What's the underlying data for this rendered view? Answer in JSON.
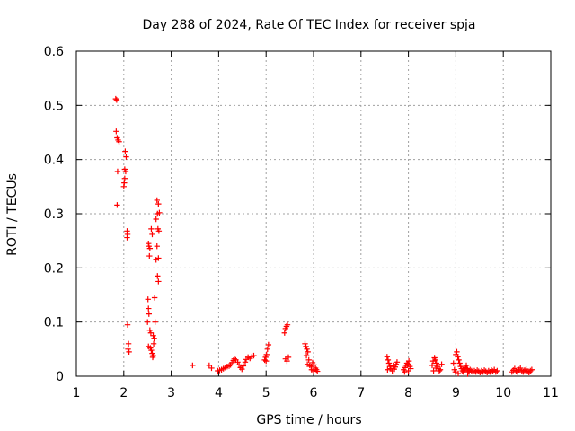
{
  "chart_data": {
    "type": "scatter",
    "title": "Day 288 of 2024, Rate Of TEC Index for receiver spja",
    "xlabel": "GPS time / hours",
    "ylabel": "ROTI / TECUs",
    "xlim": [
      1,
      11
    ],
    "ylim": [
      0,
      0.6
    ],
    "xticks": [
      1,
      2,
      3,
      4,
      5,
      6,
      7,
      8,
      9,
      10,
      11
    ],
    "xtick_labels": [
      "1",
      "2",
      "3",
      "4",
      "5",
      "6",
      "7",
      "8",
      "9",
      "10",
      "11"
    ],
    "yticks": [
      0,
      0.1,
      0.2,
      0.3,
      0.4,
      0.5,
      0.6
    ],
    "ytick_labels": [
      "0",
      "0.1",
      "0.2",
      "0.3",
      "0.4",
      "0.5",
      "0.6"
    ],
    "grid": true,
    "marker": "+",
    "color": "#ff0000",
    "series": [
      {
        "name": "spja",
        "points": [
          [
            1.83,
            0.512
          ],
          [
            1.85,
            0.51
          ],
          [
            1.84,
            0.452
          ],
          [
            1.86,
            0.44
          ],
          [
            1.88,
            0.436
          ],
          [
            1.9,
            0.433
          ],
          [
            1.87,
            0.378
          ],
          [
            1.86,
            0.316
          ],
          [
            2.03,
            0.415
          ],
          [
            2.05,
            0.405
          ],
          [
            2.02,
            0.382
          ],
          [
            2.04,
            0.378
          ],
          [
            2.02,
            0.365
          ],
          [
            2.01,
            0.357
          ],
          [
            2.0,
            0.35
          ],
          [
            2.07,
            0.268
          ],
          [
            2.08,
            0.262
          ],
          [
            2.07,
            0.256
          ],
          [
            2.08,
            0.095
          ],
          [
            2.1,
            0.06
          ],
          [
            2.09,
            0.05
          ],
          [
            2.11,
            0.045
          ],
          [
            2.52,
            0.245
          ],
          [
            2.53,
            0.24
          ],
          [
            2.55,
            0.236
          ],
          [
            2.54,
            0.222
          ],
          [
            2.58,
            0.272
          ],
          [
            2.6,
            0.262
          ],
          [
            2.51,
            0.142
          ],
          [
            2.52,
            0.125
          ],
          [
            2.53,
            0.115
          ],
          [
            2.5,
            0.1
          ],
          [
            2.55,
            0.085
          ],
          [
            2.57,
            0.08
          ],
          [
            2.52,
            0.055
          ],
          [
            2.56,
            0.052
          ],
          [
            2.58,
            0.048
          ],
          [
            2.6,
            0.042
          ],
          [
            2.62,
            0.038
          ],
          [
            2.61,
            0.035
          ],
          [
            2.63,
            0.06
          ],
          [
            2.64,
            0.07
          ],
          [
            2.62,
            0.075
          ],
          [
            2.66,
            0.1
          ],
          [
            2.65,
            0.145
          ],
          [
            2.7,
            0.325
          ],
          [
            2.73,
            0.318
          ],
          [
            2.75,
            0.302
          ],
          [
            2.68,
            0.29
          ],
          [
            2.71,
            0.3
          ],
          [
            2.72,
            0.272
          ],
          [
            2.74,
            0.268
          ],
          [
            2.7,
            0.24
          ],
          [
            2.68,
            0.215
          ],
          [
            2.73,
            0.218
          ],
          [
            2.71,
            0.185
          ],
          [
            2.73,
            0.175
          ],
          [
            3.45,
            0.02
          ],
          [
            3.8,
            0.02
          ],
          [
            3.85,
            0.015
          ],
          [
            3.98,
            0.01
          ],
          [
            4.02,
            0.011
          ],
          [
            4.06,
            0.012
          ],
          [
            4.1,
            0.014
          ],
          [
            4.14,
            0.016
          ],
          [
            4.18,
            0.018
          ],
          [
            4.22,
            0.019
          ],
          [
            4.25,
            0.021
          ],
          [
            4.28,
            0.025
          ],
          [
            4.31,
            0.029
          ],
          [
            4.33,
            0.032
          ],
          [
            4.36,
            0.03
          ],
          [
            4.4,
            0.026
          ],
          [
            4.43,
            0.021
          ],
          [
            4.46,
            0.016
          ],
          [
            4.49,
            0.013
          ],
          [
            4.52,
            0.019
          ],
          [
            4.56,
            0.026
          ],
          [
            4.58,
            0.031
          ],
          [
            4.62,
            0.035
          ],
          [
            4.66,
            0.033
          ],
          [
            4.7,
            0.036
          ],
          [
            4.74,
            0.038
          ],
          [
            4.97,
            0.03
          ],
          [
            4.99,
            0.035
          ],
          [
            5.01,
            0.04
          ],
          [
            5.03,
            0.05
          ],
          [
            5.05,
            0.058
          ],
          [
            5.0,
            0.028
          ],
          [
            5.39,
            0.08
          ],
          [
            5.41,
            0.088
          ],
          [
            5.43,
            0.092
          ],
          [
            5.45,
            0.095
          ],
          [
            5.41,
            0.032
          ],
          [
            5.44,
            0.028
          ],
          [
            5.47,
            0.035
          ],
          [
            5.82,
            0.06
          ],
          [
            5.84,
            0.055
          ],
          [
            5.86,
            0.05
          ],
          [
            5.88,
            0.045
          ],
          [
            5.85,
            0.038
          ],
          [
            5.9,
            0.03
          ],
          [
            5.87,
            0.022
          ],
          [
            5.92,
            0.02
          ],
          [
            5.95,
            0.018
          ],
          [
            5.98,
            0.025
          ],
          [
            6.01,
            0.021
          ],
          [
            6.04,
            0.015
          ],
          [
            6.06,
            0.012
          ],
          [
            6.08,
            0.009
          ],
          [
            5.96,
            0.012
          ],
          [
            6.0,
            0.01
          ],
          [
            7.55,
            0.036
          ],
          [
            7.57,
            0.03
          ],
          [
            7.59,
            0.024
          ],
          [
            7.61,
            0.018
          ],
          [
            7.63,
            0.014
          ],
          [
            7.56,
            0.012
          ],
          [
            7.66,
            0.01
          ],
          [
            7.7,
            0.013
          ],
          [
            7.72,
            0.017
          ],
          [
            7.74,
            0.022
          ],
          [
            7.76,
            0.026
          ],
          [
            7.68,
            0.02
          ],
          [
            7.9,
            0.012
          ],
          [
            7.93,
            0.016
          ],
          [
            7.95,
            0.02
          ],
          [
            7.97,
            0.024
          ],
          [
            7.99,
            0.022
          ],
          [
            8.01,
            0.028
          ],
          [
            8.03,
            0.018
          ],
          [
            8.05,
            0.014
          ],
          [
            7.92,
            0.008
          ],
          [
            8.0,
            0.01
          ],
          [
            8.5,
            0.02
          ],
          [
            8.52,
            0.028
          ],
          [
            8.55,
            0.034
          ],
          [
            8.57,
            0.03
          ],
          [
            8.59,
            0.024
          ],
          [
            8.61,
            0.018
          ],
          [
            8.63,
            0.014
          ],
          [
            8.65,
            0.01
          ],
          [
            8.67,
            0.012
          ],
          [
            8.53,
            0.01
          ],
          [
            8.58,
            0.015
          ],
          [
            8.7,
            0.022
          ],
          [
            8.95,
            0.024
          ],
          [
            8.97,
            0.012
          ],
          [
            8.99,
            0.008
          ],
          [
            9.0,
            0.04
          ],
          [
            9.02,
            0.045
          ],
          [
            9.04,
            0.036
          ],
          [
            9.06,
            0.03
          ],
          [
            9.08,
            0.024
          ],
          [
            9.1,
            0.018
          ],
          [
            9.12,
            0.014
          ],
          [
            9.14,
            0.01
          ],
          [
            9.16,
            0.008
          ],
          [
            9.18,
            0.012
          ],
          [
            9.2,
            0.016
          ],
          [
            9.22,
            0.02
          ],
          [
            9.24,
            0.014
          ],
          [
            9.26,
            0.01
          ],
          [
            9.28,
            0.008
          ],
          [
            9.3,
            0.012
          ],
          [
            9.33,
            0.01
          ],
          [
            9.36,
            0.008
          ],
          [
            9.39,
            0.01
          ],
          [
            9.42,
            0.008
          ],
          [
            9.45,
            0.011
          ],
          [
            9.48,
            0.009
          ],
          [
            9.51,
            0.007
          ],
          [
            9.54,
            0.01
          ],
          [
            9.57,
            0.008
          ],
          [
            9.6,
            0.011
          ],
          [
            9.63,
            0.009
          ],
          [
            9.66,
            0.007
          ],
          [
            9.69,
            0.01
          ],
          [
            9.72,
            0.008
          ],
          [
            9.75,
            0.011
          ],
          [
            9.78,
            0.009
          ],
          [
            9.81,
            0.012
          ],
          [
            9.84,
            0.008
          ],
          [
            9.87,
            0.01
          ],
          [
            9.05,
            0.005
          ],
          [
            9.25,
            0.004
          ],
          [
            10.18,
            0.008
          ],
          [
            10.21,
            0.011
          ],
          [
            10.24,
            0.014
          ],
          [
            10.27,
            0.01
          ],
          [
            10.3,
            0.008
          ],
          [
            10.33,
            0.012
          ],
          [
            10.36,
            0.015
          ],
          [
            10.39,
            0.01
          ],
          [
            10.42,
            0.008
          ],
          [
            10.45,
            0.011
          ],
          [
            10.48,
            0.013
          ],
          [
            10.51,
            0.009
          ],
          [
            10.54,
            0.007
          ],
          [
            10.57,
            0.01
          ],
          [
            10.6,
            0.012
          ]
        ]
      }
    ]
  }
}
